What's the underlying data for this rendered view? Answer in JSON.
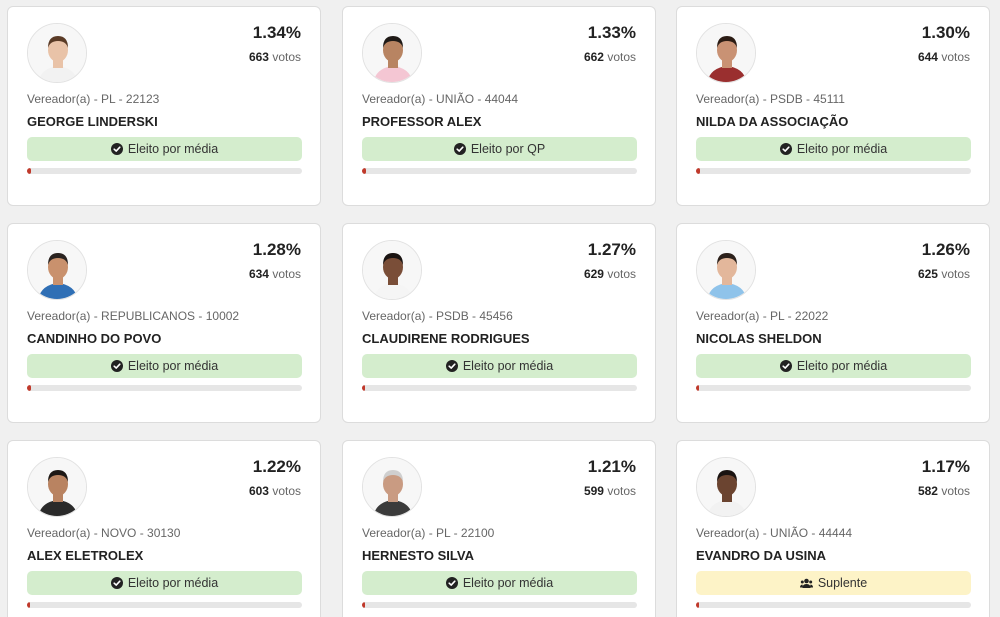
{
  "cards": [
    {
      "pct": "1.34%",
      "votes": "663",
      "votes_label": "votos",
      "party": "Vereador(a) - PL - 22123",
      "name": "GEORGE LINDERSKI",
      "status": "Eleito por média",
      "status_type": "eleito",
      "progress": 1.34,
      "skin": "#e9c3a8",
      "hair": "#5a3b26",
      "shirt": "#f2f2f2"
    },
    {
      "pct": "1.33%",
      "votes": "662",
      "votes_label": "votos",
      "party": "Vereador(a) - UNIÃO - 44044",
      "name": "PROFESSOR ALEX",
      "status": "Eleito por QP",
      "status_type": "eleito",
      "progress": 1.33,
      "skin": "#b88462",
      "hair": "#1f1a17",
      "shirt": "#f4c6d3"
    },
    {
      "pct": "1.30%",
      "votes": "644",
      "votes_label": "votos",
      "party": "Vereador(a) - PSDB - 45111",
      "name": "NILDA DA ASSOCIAÇÃO",
      "status": "Eleito por média",
      "status_type": "eleito",
      "progress": 1.3,
      "skin": "#c99274",
      "hair": "#2b1c14",
      "shirt": "#9a2f2f"
    },
    {
      "pct": "1.28%",
      "votes": "634",
      "votes_label": "votos",
      "party": "Vereador(a) - REPUBLICANOS - 10002",
      "name": "CANDINHO DO POVO",
      "status": "Eleito por média",
      "status_type": "eleito",
      "progress": 1.28,
      "skin": "#c9916d",
      "hair": "#2a2320",
      "shirt": "#2f6fb5"
    },
    {
      "pct": "1.27%",
      "votes": "629",
      "votes_label": "votos",
      "party": "Vereador(a) - PSDB - 45456",
      "name": "CLAUDIRENE RODRIGUES",
      "status": "Eleito por média",
      "status_type": "eleito",
      "progress": 1.27,
      "skin": "#7a4e38",
      "hair": "#1a1412",
      "shirt": "#f5f5f5"
    },
    {
      "pct": "1.26%",
      "votes": "625",
      "votes_label": "votos",
      "party": "Vereador(a) - PL - 22022",
      "name": "NICOLAS SHELDON",
      "status": "Eleito por média",
      "status_type": "eleito",
      "progress": 1.26,
      "skin": "#e3b79b",
      "hair": "#2c211b",
      "shirt": "#8fc3ea"
    },
    {
      "pct": "1.22%",
      "votes": "603",
      "votes_label": "votos",
      "party": "Vereador(a) - NOVO - 30130",
      "name": "ALEX ELETROLEX",
      "status": "Eleito por média",
      "status_type": "eleito",
      "progress": 1.22,
      "skin": "#b98361",
      "hair": "#1d1815",
      "shirt": "#2a2a2a"
    },
    {
      "pct": "1.21%",
      "votes": "599",
      "votes_label": "votos",
      "party": "Vereador(a) - PL - 22100",
      "name": "HERNESTO SILVA",
      "status": "Eleito por média",
      "status_type": "eleito",
      "progress": 1.21,
      "skin": "#c99b82",
      "hair": "#cfcfcf",
      "shirt": "#3b3b3b"
    },
    {
      "pct": "1.17%",
      "votes": "582",
      "votes_label": "votos",
      "party": "Vereador(a) - UNIÃO - 44444",
      "name": "EVANDRO DA USINA",
      "status": "Suplente",
      "status_type": "suplente",
      "progress": 1.17,
      "skin": "#6b4430",
      "hair": "#1a1311",
      "shirt": "#f2f2f2"
    }
  ],
  "icons": {
    "eleito": "check-circle-icon",
    "suplente": "users-icon"
  },
  "colors": {
    "eleito_bg": "#d4edcd",
    "suplente_bg": "#fdf3c7",
    "progress_fill": "#c0392b",
    "progress_track": "#e6e6e6"
  }
}
